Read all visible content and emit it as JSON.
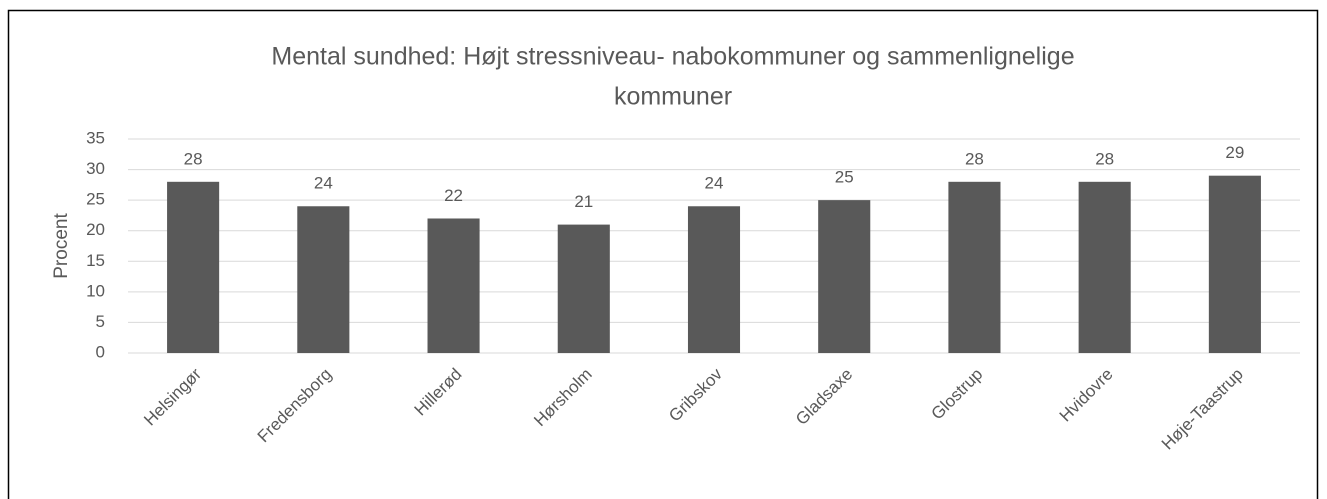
{
  "chart_data": {
    "type": "bar",
    "title": "Mental sundhed: Højt stressniveau- nabokommuner og sammenlignelige kommuner",
    "title_lines": [
      "Mental sundhed: Højt stressniveau- nabokommuner og sammenlignelige",
      "kommuner"
    ],
    "y_label": "Procent",
    "categories": [
      "Helsingør",
      "Fredensborg",
      "Hillerød",
      "Hørsholm",
      "Gribskov",
      "Gladsaxe",
      "Glostrup",
      "Hvidovre",
      "Høje-Taastrup"
    ],
    "values": [
      28,
      24,
      22,
      21,
      24,
      25,
      28,
      28,
      29
    ],
    "color": "#595959",
    "ylim": [
      0,
      35
    ],
    "yticks": [
      0,
      5,
      10,
      15,
      20,
      25,
      30,
      35
    ],
    "grid": true
  }
}
